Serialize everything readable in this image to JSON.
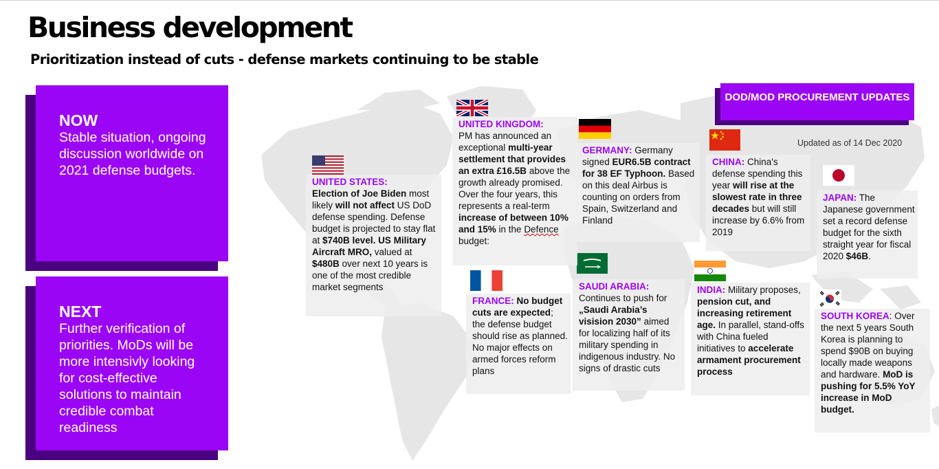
{
  "header": {
    "title": "Business development",
    "subtitle": "Prioritization instead of cuts - defense markets continuing to be stable"
  },
  "panels": {
    "now": {
      "heading": "NOW",
      "body": "Stable situation, ongoing discussion worldwide on 2021 defense budgets."
    },
    "next": {
      "heading": "NEXT",
      "body": "Further verification of priorities. MoDs will be more intensivly looking for cost-effective solutions to maintain credible combat readiness"
    }
  },
  "dod_badge": "DOD/MOD PROCUREMENT UPDATES",
  "updated_note": "Updated as of 14 Dec  2020",
  "colors": {
    "accent": "#9b05f5",
    "accent_shadow": "#4a0080",
    "map": "#e6e6e6"
  },
  "countries": {
    "us": {
      "name": "UNITED STATES:",
      "t1": "Election of Joe Biden",
      "t2": " most likely ",
      "t3": "will not affect",
      "t4": " US DoD defense spending. Defense budget is projected to stay flat at ",
      "t5": "$740B level. US Military Aircraft MRO,",
      "t6": " valued at ",
      "t7": "$480B",
      "t8": " over next 10 years is one of the most credible market segments"
    },
    "uk": {
      "name": "UNITED KINGDOM:",
      "t1": "PM has announced an exceptional ",
      "t2": "multi-year settlement that provides an extra £16.5B",
      "t3": " above the growth already promised. Over the four years, this represents a real-term ",
      "t4": "increase of between 10% and 15%",
      "t5": " in the ",
      "t6": "Defence",
      "t7": " budget:"
    },
    "de": {
      "name": "GERMANY:",
      "t1": " Germany signed ",
      "t2": "EUR6.5B contract for 38 EF Typhoon.",
      "t3": " Based on this deal Airbus is counting on orders from Spain, Switzerland and Finland"
    },
    "cn": {
      "name": "CHINA:",
      "t1": " China's defense spending this year ",
      "t2": "will rise at the slowest rate in three decades",
      "t3": " but will still increase by 6.6% from 2019"
    },
    "jp": {
      "name": "JAPAN:",
      "t1": " The Japanese government set a record defense budget for the sixth straight year for fiscal 2020 ",
      "t2": "$46B",
      "t3": "."
    },
    "fr": {
      "name": "FRANCE:",
      "t1": " No budget cuts are expected",
      "t2": "; the defense budget should rise as planned. No major effects on armed forces reform plans"
    },
    "sa": {
      "name": "SAUDI ARABIA:",
      "t1": "Continues to push for ",
      "t2": "„Saudi Arabia’s visision 2030”",
      "t3": " aimed for localizing half of its military spending in indigenous industry. No signs of drastic cuts"
    },
    "in": {
      "name": "INDIA:",
      "t1": " Military proposes, ",
      "t2": "pension cut, and increasing retirement age.",
      "t3": " In parallel, stand-offs with China fueled initiatives to ",
      "t4": "accelerate armament procurement process"
    },
    "kr": {
      "name": "SOUTH KOREA",
      "t0": ": ",
      "t1": "Over the next 5 years South Korea is planning to spend $90B on buying locally made weapons and hardware. ",
      "t2": "MoD is pushing for 5.5% YoY increase in MoD budget."
    }
  }
}
